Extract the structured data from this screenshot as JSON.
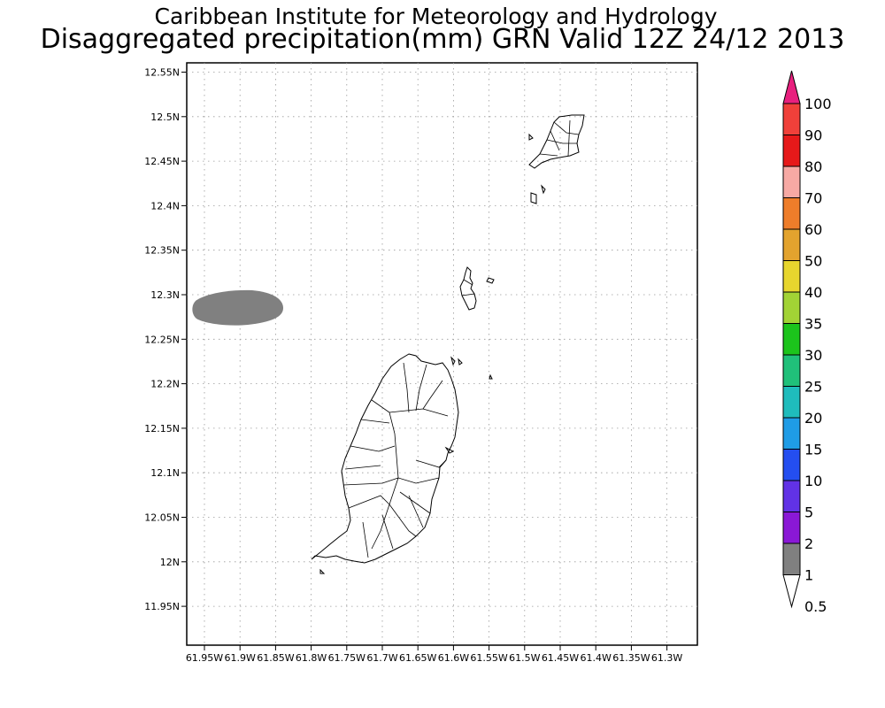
{
  "title": "Caribbean Institute for Meteorology and Hydrology",
  "subtitle": "Disaggregated precipitation(mm) GRN Valid 12Z 24/12 2013",
  "axes": {
    "latitude_labels": [
      "12.55N",
      "12.5N",
      "12.45N",
      "12.4N",
      "12.35N",
      "12.3N",
      "12.25N",
      "12.2N",
      "12.15N",
      "12.1N",
      "12.05N",
      "12N",
      "11.95N"
    ],
    "longitude_labels": [
      "61.95W",
      "61.9W",
      "61.85W",
      "61.8W",
      "61.75W",
      "61.7W",
      "61.65W",
      "61.6W",
      "61.55W",
      "61.5W",
      "61.45W",
      "61.4W",
      "61.35W",
      "61.3W"
    ],
    "grid": "dotted"
  },
  "colorbar": {
    "labels": [
      "100",
      "90",
      "80",
      "70",
      "60",
      "50",
      "40",
      "35",
      "30",
      "25",
      "20",
      "15",
      "10",
      "5",
      "2",
      "1",
      "0.5"
    ],
    "colors": [
      "#e8207e",
      "#f0403a",
      "#e6191a",
      "#f7a9a4",
      "#ee7d2a",
      "#e3a32e",
      "#e7d62e",
      "#a2d335",
      "#1cc41c",
      "#20c07a",
      "#1fbcbc",
      "#1f9ce6",
      "#244ef0",
      "#6132e6",
      "#8a18d6",
      "#a40fb3",
      "#808080"
    ]
  },
  "precip_area": {
    "color": "#808080"
  }
}
